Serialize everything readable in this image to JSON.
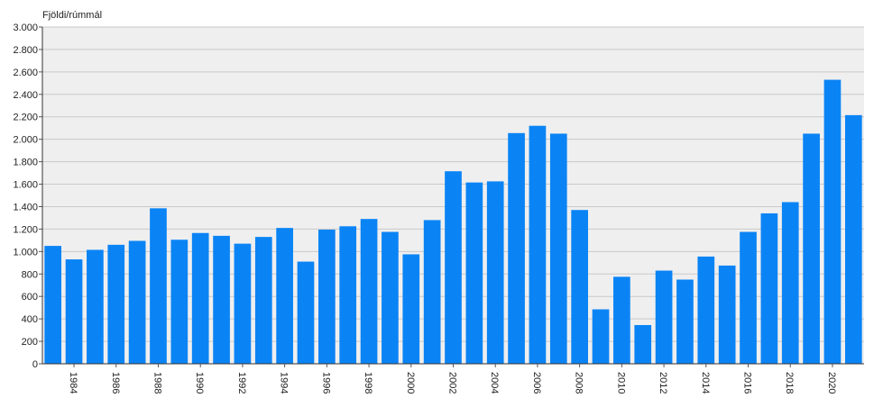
{
  "chart_data": {
    "type": "bar",
    "title": "",
    "xlabel": "",
    "ylabel": "Fjöldi/rúmmál",
    "ylim": [
      0,
      3000
    ],
    "y_ticks": [
      0,
      200,
      400,
      600,
      800,
      1000,
      1200,
      1400,
      1600,
      1800,
      2000,
      2200,
      2400,
      2600,
      2800,
      3000
    ],
    "y_tick_labels": [
      "0",
      "200",
      "400",
      "600",
      "800",
      "1.000",
      "1.200",
      "1.400",
      "1.600",
      "1.800",
      "2.000",
      "2.200",
      "2.400",
      "2.600",
      "2.800",
      "3.000"
    ],
    "grid": true,
    "bar_color": "#0a84f5",
    "plot_background": "#efefef",
    "categories": [
      1983,
      1984,
      1985,
      1986,
      1987,
      1988,
      1989,
      1990,
      1991,
      1992,
      1993,
      1994,
      1995,
      1996,
      1997,
      1998,
      1999,
      2000,
      2001,
      2002,
      2003,
      2004,
      2005,
      2006,
      2007,
      2008,
      2009,
      2010,
      2011,
      2012,
      2013,
      2014,
      2015,
      2016,
      2017,
      2018,
      2019,
      2020,
      2021
    ],
    "x_tick_labels": [
      "1984",
      "1986",
      "1988",
      "1990",
      "1992",
      "1994",
      "1996",
      "1998",
      "2000",
      "2002",
      "2004",
      "2006",
      "2008",
      "2010",
      "2012",
      "2014",
      "2016",
      "2018",
      "2020"
    ],
    "values": [
      1050,
      930,
      1015,
      1060,
      1095,
      1385,
      1105,
      1165,
      1140,
      1070,
      1130,
      1210,
      910,
      1195,
      1225,
      1290,
      1175,
      975,
      1280,
      1715,
      1615,
      1625,
      2055,
      2120,
      2050,
      1370,
      485,
      775,
      345,
      830,
      750,
      955,
      875,
      1175,
      1340,
      1440,
      2050,
      2530,
      2215
    ]
  }
}
